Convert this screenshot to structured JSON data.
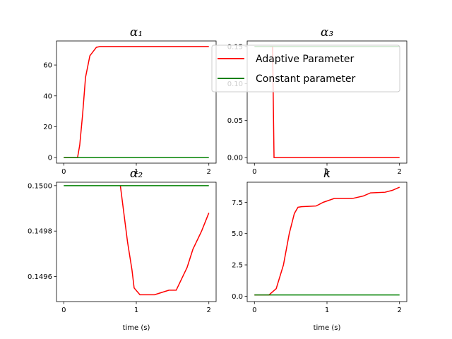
{
  "chart_data": [
    {
      "type": "line",
      "title": "α₁",
      "xlabel": "",
      "ylabel": "",
      "xlim": [
        -0.1,
        2.1
      ],
      "ylim": [
        -3.6,
        75.6
      ],
      "xticks": [
        0,
        1,
        2
      ],
      "yticks": [
        0,
        20,
        40,
        60
      ],
      "tick_labels_y": [
        "0",
        "20",
        "40",
        "60"
      ],
      "series": [
        {
          "name": "Adaptive Parameter",
          "color": "#ff0000",
          "x": [
            0,
            0.19,
            0.19,
            0.22,
            0.26,
            0.3,
            0.36,
            0.45,
            0.5,
            2.0
          ],
          "y": [
            0,
            0,
            0,
            8,
            28,
            52,
            66,
            71.5,
            72,
            72
          ]
        },
        {
          "name": "Constant parameter",
          "color": "#008000",
          "x": [
            0,
            2.0
          ],
          "y": [
            0,
            0
          ]
        }
      ]
    },
    {
      "type": "line",
      "title": "α₃",
      "xlabel": "",
      "ylabel": "",
      "xlim": [
        -0.1,
        2.1
      ],
      "ylim": [
        -0.0075,
        0.1575
      ],
      "xticks": [
        0,
        1,
        2
      ],
      "yticks": [
        0.0,
        0.05,
        0.1,
        0.15
      ],
      "tick_labels_y": [
        "0.00",
        "0.05",
        "0.10",
        "0.15"
      ],
      "series": [
        {
          "name": "Adaptive Parameter",
          "color": "#ff0000",
          "x": [
            0.22,
            0.25,
            0.27,
            2.0
          ],
          "y": [
            0.15,
            0.15,
            0.0,
            0.0
          ]
        },
        {
          "name": "Constant parameter",
          "color": "#008000",
          "x": [
            0,
            2.0
          ],
          "y": [
            0.15,
            0.15
          ]
        }
      ]
    },
    {
      "type": "line",
      "title": "α₂",
      "xlabel": "time (s)",
      "ylabel": "",
      "xlim": [
        -0.1,
        2.1
      ],
      "ylim": [
        0.14949,
        0.150015
      ],
      "xticks": [
        0,
        1,
        2
      ],
      "yticks": [
        0.1496,
        0.1498,
        0.15
      ],
      "tick_labels_y": [
        "0.1496",
        "0.1498",
        "0.1500"
      ],
      "series": [
        {
          "name": "Adaptive Parameter",
          "color": "#ff0000",
          "x": [
            0.78,
            0.82,
            0.88,
            0.94,
            0.97,
            1.05,
            1.12,
            1.25,
            1.35,
            1.45,
            1.55,
            1.7,
            1.78,
            1.9,
            2.0
          ],
          "y": [
            0.15,
            0.1499,
            0.14975,
            0.14963,
            0.14955,
            0.14952,
            0.14952,
            0.14952,
            0.14953,
            0.14954,
            0.14954,
            0.14964,
            0.14972,
            0.1498,
            0.14988
          ]
        },
        {
          "name": "Constant parameter",
          "color": "#008000",
          "x": [
            0,
            2.0
          ],
          "y": [
            0.15,
            0.15
          ]
        }
      ]
    },
    {
      "type": "line",
      "title": "k",
      "xlabel": "time (s)",
      "ylabel": "",
      "xlim": [
        -0.1,
        2.1
      ],
      "ylim": [
        -0.43,
        9.1
      ],
      "xticks": [
        0,
        1,
        2
      ],
      "yticks": [
        0.0,
        2.5,
        5.0,
        7.5
      ],
      "tick_labels_y": [
        "0.0",
        "2.5",
        "5.0",
        "7.5"
      ],
      "series": [
        {
          "name": "Adaptive Parameter",
          "color": "#ff0000",
          "x": [
            0,
            0.2,
            0.3,
            0.4,
            0.48,
            0.55,
            0.6,
            0.65,
            0.85,
            0.95,
            1.1,
            1.35,
            1.5,
            1.6,
            1.8,
            1.9,
            2.0
          ],
          "y": [
            0.1,
            0.1,
            0.6,
            2.5,
            5.0,
            6.6,
            7.1,
            7.15,
            7.2,
            7.5,
            7.8,
            7.8,
            8.0,
            8.25,
            8.3,
            8.45,
            8.7
          ]
        },
        {
          "name": "Constant parameter",
          "color": "#008000",
          "x": [
            0,
            2.0
          ],
          "y": [
            0.1,
            0.1
          ]
        }
      ]
    }
  ],
  "legend": {
    "placement": "upper-center",
    "entries": [
      {
        "label": "Adaptive Parameter",
        "color": "#ff0000"
      },
      {
        "label": "Constant parameter",
        "color": "#008000"
      }
    ]
  }
}
